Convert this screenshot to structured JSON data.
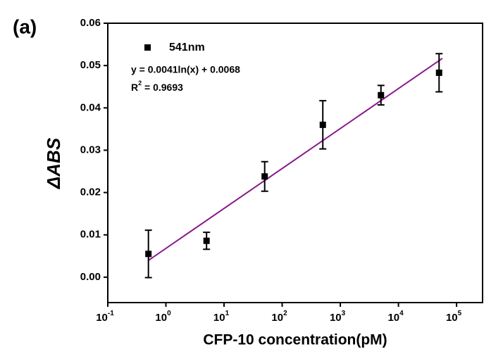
{
  "chart_data": {
    "type": "scatter",
    "panel_label": "(a)",
    "x_label": "CFP-10 concentration(pM)",
    "y_label": "ΔABS",
    "x_log": true,
    "xlim": [
      0.1,
      280000
    ],
    "ylim": [
      -0.006,
      0.06
    ],
    "xticks": [
      {
        "value": 0.1,
        "label": "10",
        "exponent": "-1"
      },
      {
        "value": 1,
        "label": "10",
        "exponent": "0"
      },
      {
        "value": 10,
        "label": "10",
        "exponent": "1"
      },
      {
        "value": 100,
        "label": "10",
        "exponent": "2"
      },
      {
        "value": 1000,
        "label": "10",
        "exponent": "3"
      },
      {
        "value": 10000,
        "label": "10",
        "exponent": "4"
      },
      {
        "value": 100000,
        "label": "10",
        "exponent": "5"
      }
    ],
    "yticks": [
      {
        "value": 0,
        "label": "0.00"
      },
      {
        "value": 0.01,
        "label": "0.01"
      },
      {
        "value": 0.02,
        "label": "0.02"
      },
      {
        "value": 0.03,
        "label": "0.03"
      },
      {
        "value": 0.04,
        "label": "0.04"
      },
      {
        "value": 0.05,
        "label": "0.05"
      },
      {
        "value": 0.06,
        "label": "0.06"
      }
    ],
    "series": [
      {
        "name": "541nm",
        "color": "#000000",
        "x": [
          0.5,
          5,
          50,
          500,
          5000,
          50000
        ],
        "values": [
          0.0055,
          0.0086,
          0.0238,
          0.036,
          0.043,
          0.0483
        ],
        "errors": [
          0.0056,
          0.002,
          0.0035,
          0.0057,
          0.0023,
          0.0045
        ]
      }
    ],
    "fit": {
      "color": "#8b1a8b",
      "x": [
        0.5,
        57000
      ],
      "values": [
        0.00396,
        0.0517
      ]
    },
    "equation": "y = 0.0041ln(x) + 0.0068",
    "r_squared": {
      "symbol": "R",
      "exponent": "2",
      "text": " = 0.9693"
    }
  }
}
